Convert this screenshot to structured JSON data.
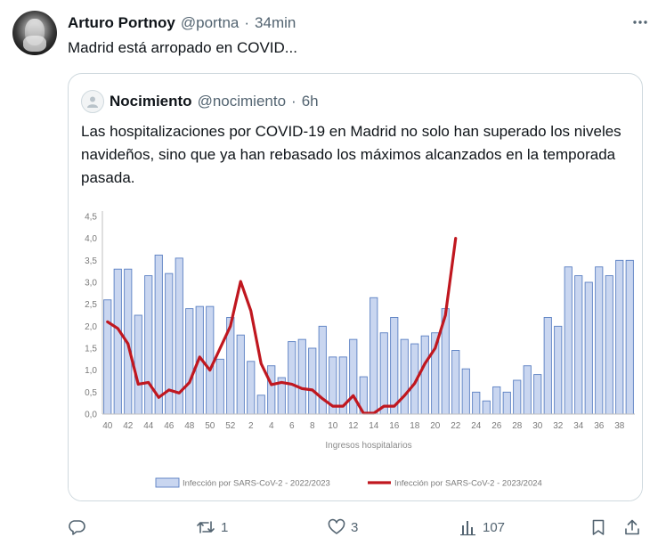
{
  "tweet": {
    "display_name": "Arturo Portnoy",
    "handle": "@portna",
    "separator": "·",
    "time": "34min",
    "text": "Madrid está arropado en COVID..."
  },
  "quote": {
    "display_name": "Nocimiento",
    "handle": "@nocimiento",
    "separator": "·",
    "time": "6h",
    "text": "Las hospitalizaciones por COVID-19 en Madrid no solo han superado los niveles navideños, sino que ya han rebasado los máximos alcanzados en la temporada pasada."
  },
  "actions": {
    "reply_count": "",
    "retweet_count": "1",
    "like_count": "3",
    "views_count": "107"
  },
  "icons": [
    "more-icon",
    "reply-icon",
    "retweet-icon",
    "like-icon",
    "views-icon",
    "bookmark-icon",
    "share-icon"
  ],
  "chart_data": {
    "type": "bar",
    "xlabel": "Ingresos hospitalarios",
    "ylabel": "",
    "ylim": [
      0,
      4.5
    ],
    "yticks": [
      "0,0",
      "0,5",
      "1,0",
      "1,5",
      "2,0",
      "2,5",
      "3,0",
      "3,5",
      "4,0",
      "4,5"
    ],
    "categories": [
      "40",
      "41",
      "42",
      "43",
      "44",
      "45",
      "46",
      "47",
      "48",
      "49",
      "50",
      "51",
      "52",
      "1",
      "2",
      "3",
      "4",
      "5",
      "6",
      "7",
      "8",
      "9",
      "10",
      "11",
      "12",
      "13",
      "14",
      "15",
      "16",
      "17",
      "18",
      "19",
      "20",
      "21",
      "22",
      "23",
      "24",
      "25",
      "26",
      "27",
      "28",
      "29",
      "30",
      "31",
      "32",
      "33",
      "34",
      "35",
      "36",
      "37",
      "38",
      "39"
    ],
    "xtick_labels": [
      "40",
      "42",
      "44",
      "46",
      "48",
      "50",
      "52",
      "2",
      "4",
      "6",
      "8",
      "10",
      "12",
      "14",
      "16",
      "18",
      "20",
      "22",
      "24",
      "26",
      "28",
      "30",
      "32",
      "34",
      "36",
      "38"
    ],
    "series": [
      {
        "name": "Infección por SARS-CoV-2 - 2022/2023",
        "type": "bar",
        "color": "#c9d6f0",
        "values": [
          2.6,
          3.3,
          3.3,
          2.25,
          3.15,
          3.62,
          3.2,
          3.55,
          2.4,
          2.45,
          2.45,
          1.25,
          2.2,
          1.8,
          1.2,
          0.43,
          1.1,
          0.83,
          1.65,
          1.7,
          1.5,
          2.0,
          1.3,
          1.3,
          1.7,
          0.85,
          2.65,
          1.85,
          2.2,
          1.7,
          1.6,
          1.78,
          1.85,
          2.4,
          1.45,
          1.03,
          0.5,
          0.3,
          0.62,
          0.5,
          0.77,
          1.1,
          0.9,
          2.2,
          2.0,
          3.35,
          3.15,
          3.0,
          3.35,
          3.15,
          3.5,
          3.5
        ]
      },
      {
        "name": "Infección por SARS-CoV-2 - 2023/2024",
        "type": "line",
        "color": "#c0171f",
        "values": [
          2.1,
          1.95,
          1.6,
          0.68,
          0.72,
          0.38,
          0.55,
          0.48,
          0.72,
          1.3,
          1.0,
          1.5,
          2.0,
          3.02,
          2.35,
          1.15,
          0.67,
          0.72,
          0.68,
          0.58,
          0.55,
          0.35,
          0.18,
          0.18,
          0.42,
          0.02,
          0.02,
          0.18,
          0.18,
          0.42,
          0.7,
          1.15,
          1.5,
          2.25,
          4.0,
          null,
          null,
          null,
          null,
          null,
          null,
          null,
          null,
          null,
          null,
          null,
          null,
          null,
          null,
          null,
          null,
          null
        ]
      }
    ],
    "legend_position": "bottom",
    "grid": false
  }
}
